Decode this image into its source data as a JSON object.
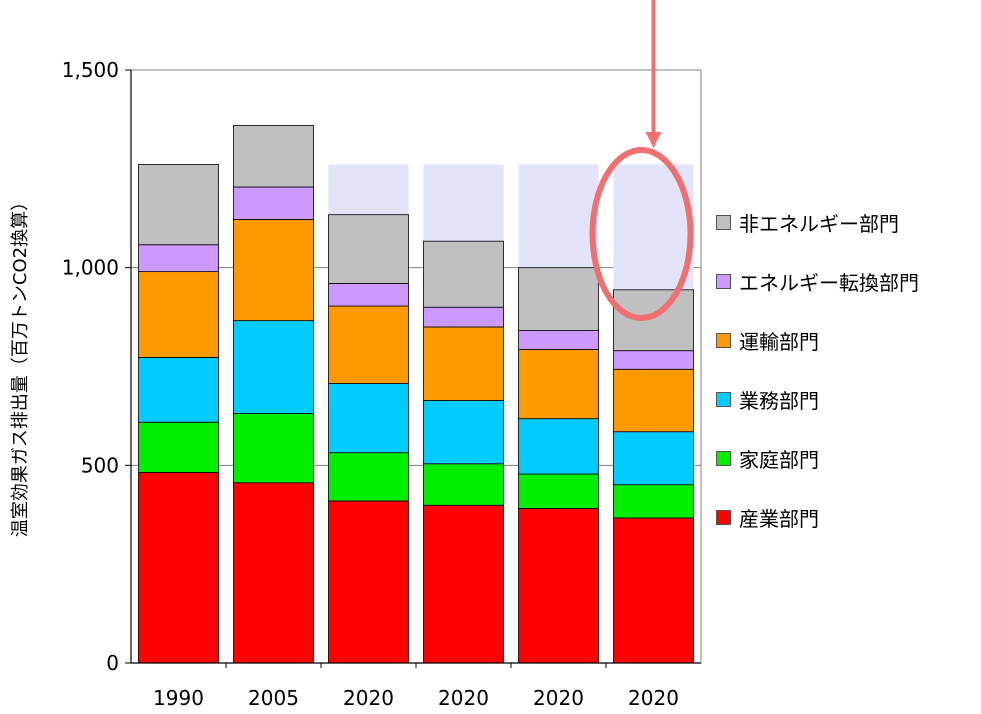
{
  "chart_data": {
    "type": "bar",
    "stacked": true,
    "ylabel": "温室効果ガス排出量（百万トンCO2換算）",
    "xlabel": "",
    "ylim": [
      0,
      1500
    ],
    "yticks": [
      "0",
      "500",
      "1,000",
      "1,500"
    ],
    "ytick_values": [
      0,
      500,
      1000,
      1500
    ],
    "categories": [
      "1990",
      "2005",
      "2020",
      "2020",
      "2020",
      "2020"
    ],
    "background_values": [
      null,
      null,
      1261,
      1261,
      1261,
      1261
    ],
    "background_color": "#e3e3fa",
    "grid": true,
    "legend_position": "right",
    "series": [
      {
        "name": "産業部門",
        "color": "#ff0000",
        "values": [
          482,
          456,
          410,
          399,
          391,
          367
        ]
      },
      {
        "name": "家庭部門",
        "color": "#00ee00",
        "values": [
          127,
          175,
          122,
          105,
          87,
          84
        ]
      },
      {
        "name": "業務部門",
        "color": "#00ccff",
        "values": [
          164,
          235,
          175,
          160,
          140,
          134
        ]
      },
      {
        "name": "運輸部門",
        "color": "#ff9900",
        "values": [
          217,
          256,
          196,
          186,
          175,
          158
        ]
      },
      {
        "name": "エネルギー転換部門",
        "color": "#cc99ff",
        "values": [
          68,
          82,
          57,
          50,
          48,
          47
        ]
      },
      {
        "name": "非エネルギー部門",
        "color": "#c0c0c0",
        "values": [
          203,
          156,
          174,
          167,
          159,
          154
        ]
      }
    ],
    "legend_order": [
      "非エネルギー部門",
      "エネルギー転換部門",
      "運輸部門",
      "業務部門",
      "家庭部門",
      "産業部門"
    ],
    "annotation": {
      "type": "arrow-and-ellipse",
      "target_category_index": 5,
      "color": "#f07070"
    }
  }
}
